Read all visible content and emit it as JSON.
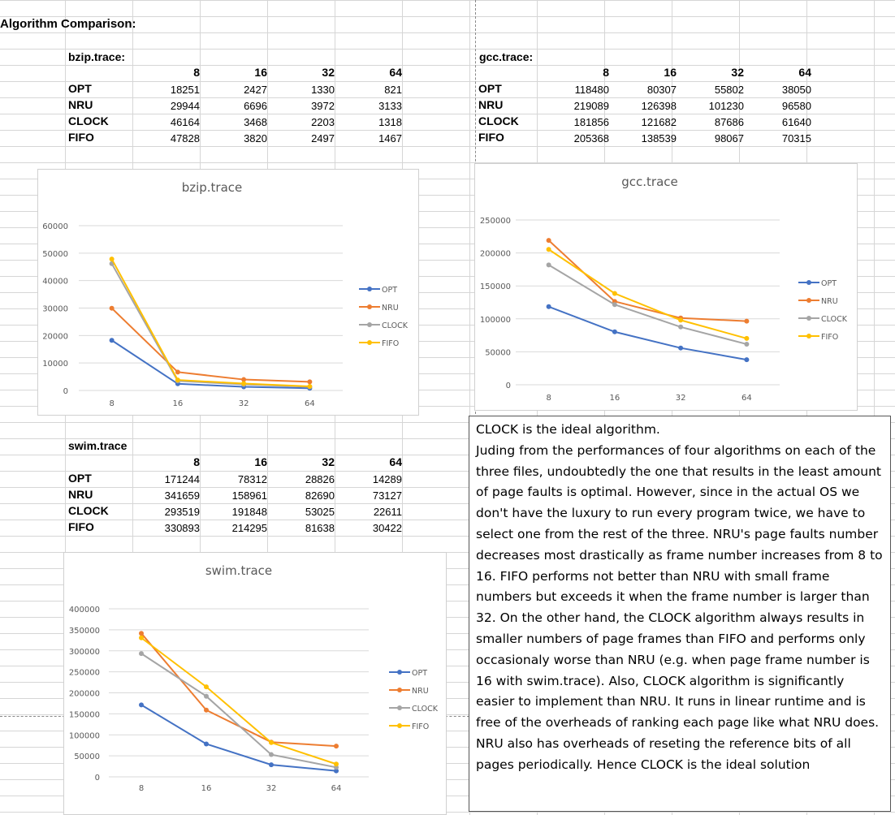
{
  "sheet_title": "Algorithm Comparison:",
  "frames": [
    "8",
    "16",
    "32",
    "64"
  ],
  "algorithms": [
    "OPT",
    "NRU",
    "CLOCK",
    "FIFO"
  ],
  "tables": [
    {
      "label": "bzip.trace:",
      "rows": [
        [
          "18251",
          "2427",
          "1330",
          "821"
        ],
        [
          "29944",
          "6696",
          "3972",
          "3133"
        ],
        [
          "46164",
          "3468",
          "2203",
          "1318"
        ],
        [
          "47828",
          "3820",
          "2497",
          "1467"
        ]
      ]
    },
    {
      "label": "gcc.trace:",
      "rows": [
        [
          "118480",
          "80307",
          "55802",
          "38050"
        ],
        [
          "219089",
          "126398",
          "101230",
          "96580"
        ],
        [
          "181856",
          "121682",
          "87686",
          "61640"
        ],
        [
          "205368",
          "138539",
          "98067",
          "70315"
        ]
      ]
    },
    {
      "label": "swim.trace",
      "rows": [
        [
          "171244",
          "78312",
          "28826",
          "14289"
        ],
        [
          "341659",
          "158961",
          "82690",
          "73127"
        ],
        [
          "293519",
          "191848",
          "53025",
          "22611"
        ],
        [
          "330893",
          "214295",
          "81638",
          "30422"
        ]
      ]
    }
  ],
  "colors": {
    "OPT": "#4472C4",
    "NRU": "#ED7D31",
    "CLOCK": "#A5A5A5",
    "FIFO": "#FFC000"
  },
  "chart_data": [
    {
      "type": "line",
      "title": "bzip.trace",
      "categories": [
        "8",
        "16",
        "32",
        "64"
      ],
      "ylim": [
        0,
        60000
      ],
      "yticks": [
        0,
        10000,
        20000,
        30000,
        40000,
        50000,
        60000
      ],
      "grid": true,
      "legend": "right",
      "series": [
        {
          "name": "OPT",
          "values": [
            18251,
            2427,
            1330,
            821
          ]
        },
        {
          "name": "NRU",
          "values": [
            29944,
            6696,
            3972,
            3133
          ]
        },
        {
          "name": "CLOCK",
          "values": [
            46164,
            3468,
            2203,
            1318
          ]
        },
        {
          "name": "FIFO",
          "values": [
            47828,
            3820,
            2497,
            1467
          ]
        }
      ]
    },
    {
      "type": "line",
      "title": "gcc.trace",
      "categories": [
        "8",
        "16",
        "32",
        "64"
      ],
      "ylim": [
        0,
        250000
      ],
      "yticks": [
        0,
        50000,
        100000,
        150000,
        200000,
        250000
      ],
      "grid": true,
      "legend": "right",
      "series": [
        {
          "name": "OPT",
          "values": [
            118480,
            80307,
            55802,
            38050
          ]
        },
        {
          "name": "NRU",
          "values": [
            219089,
            126398,
            101230,
            96580
          ]
        },
        {
          "name": "CLOCK",
          "values": [
            181856,
            121682,
            87686,
            61640
          ]
        },
        {
          "name": "FIFO",
          "values": [
            205368,
            138539,
            98067,
            70315
          ]
        }
      ]
    },
    {
      "type": "line",
      "title": "swim.trace",
      "categories": [
        "8",
        "16",
        "32",
        "64"
      ],
      "ylim": [
        0,
        400000
      ],
      "yticks": [
        0,
        50000,
        100000,
        150000,
        200000,
        250000,
        300000,
        350000,
        400000
      ],
      "grid": true,
      "legend": "right",
      "series": [
        {
          "name": "OPT",
          "values": [
            171244,
            78312,
            28826,
            14289
          ]
        },
        {
          "name": "NRU",
          "values": [
            341659,
            158961,
            82690,
            73127
          ]
        },
        {
          "name": "CLOCK",
          "values": [
            293519,
            191848,
            53025,
            22611
          ]
        },
        {
          "name": "FIFO",
          "values": [
            330893,
            214295,
            81638,
            30422
          ]
        }
      ]
    }
  ],
  "conclusion": {
    "heading": "CLOCK is the ideal algorithm.",
    "body": "Juding from the performances of four algorithms on each of the three files, undoubtedly the one that results in the least amount of page faults is optimal. However, since in the actual OS we don't have the luxury to run every program twice, we have to select one from the rest of the three. NRU's page faults number decreases most drastically as frame number increases from 8 to 16. FIFO performs not better than NRU with small frame numbers but exceeds it when the frame number is larger than 32. On the other hand, the CLOCK algorithm always results in smaller numbers of page frames than FIFO and performs only occasionaly worse than NRU (e.g. when page frame number is 16 with swim.trace). Also, CLOCK algorithm is significantly easier to implement than NRU. It runs in linear runtime and is free of the overheads of ranking each page like what NRU does. NRU also has overheads of reseting the reference bits of all pages periodically. Hence CLOCK is the ideal solution"
  }
}
